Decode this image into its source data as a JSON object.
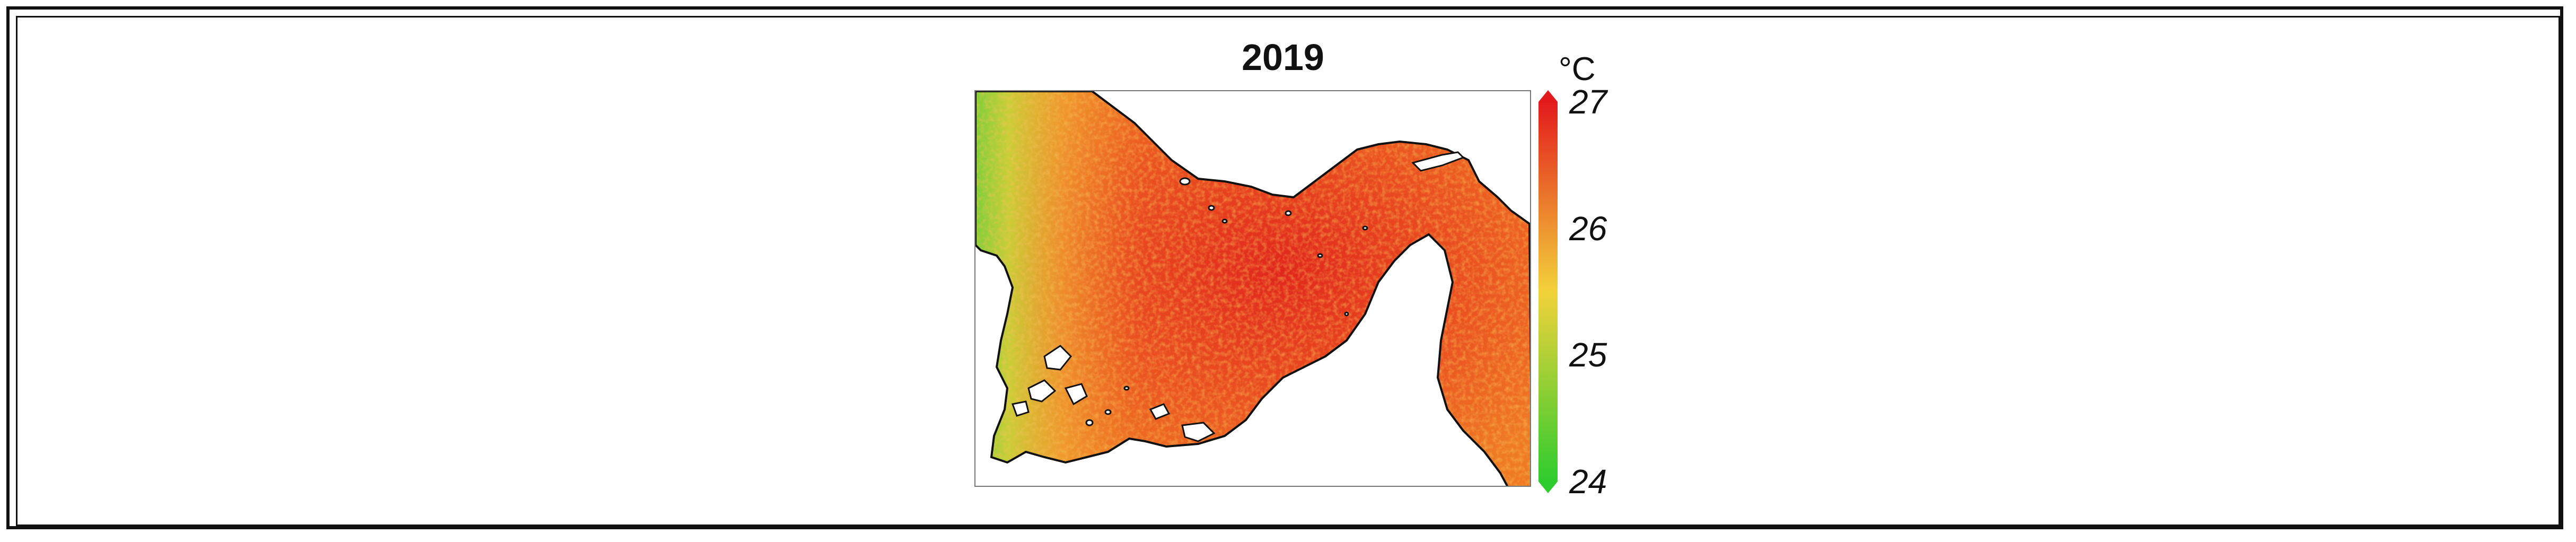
{
  "figure": {
    "title": "2019",
    "variable": "temperature",
    "unit": "°C"
  },
  "colorbar": {
    "min": 24,
    "max": 27,
    "ticks": [
      {
        "value": 27,
        "label": "27"
      },
      {
        "value": 26,
        "label": "26"
      },
      {
        "value": 25,
        "label": "25"
      },
      {
        "value": 24,
        "label": "24"
      }
    ],
    "colors": {
      "low": "#2ecc2e",
      "mid": "#f2d23a",
      "high": "#e31a1c"
    }
  },
  "map": {
    "land_color": "#ffffff",
    "coast_color": "#111111"
  }
}
